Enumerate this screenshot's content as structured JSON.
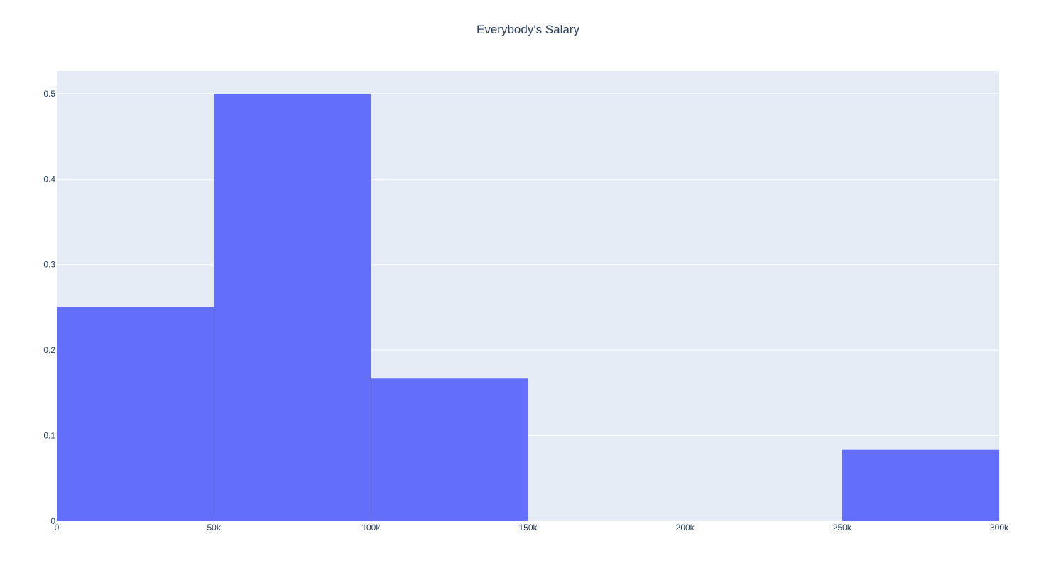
{
  "chart_data": {
    "type": "bar",
    "title": "Everybody's Salary",
    "xlabel": "",
    "ylabel": "",
    "bins": [
      {
        "start": 0,
        "end": 50000,
        "value": 0.25
      },
      {
        "start": 50000,
        "end": 100000,
        "value": 0.5
      },
      {
        "start": 100000,
        "end": 150000,
        "value": 0.1667
      },
      {
        "start": 150000,
        "end": 200000,
        "value": 0
      },
      {
        "start": 200000,
        "end": 250000,
        "value": 0
      },
      {
        "start": 250000,
        "end": 300000,
        "value": 0.0833
      }
    ],
    "xlim": [
      0,
      300000
    ],
    "ylim": [
      0,
      0.5265
    ],
    "xticks": [
      {
        "value": 0,
        "label": "0"
      },
      {
        "value": 50000,
        "label": "50k"
      },
      {
        "value": 100000,
        "label": "100k"
      },
      {
        "value": 150000,
        "label": "150k"
      },
      {
        "value": 200000,
        "label": "200k"
      },
      {
        "value": 250000,
        "label": "250k"
      },
      {
        "value": 300000,
        "label": "300k"
      }
    ],
    "yticks": [
      {
        "value": 0,
        "label": "0"
      },
      {
        "value": 0.1,
        "label": "0.1"
      },
      {
        "value": 0.2,
        "label": "0.2"
      },
      {
        "value": 0.3,
        "label": "0.3"
      },
      {
        "value": 0.4,
        "label": "0.4"
      },
      {
        "value": 0.5,
        "label": "0.5"
      }
    ],
    "grid": true,
    "colors": {
      "bar": "#636efa",
      "plot_background": "#e5ecf6",
      "grid": "#ffffff",
      "text": "#2a3f5f"
    }
  }
}
